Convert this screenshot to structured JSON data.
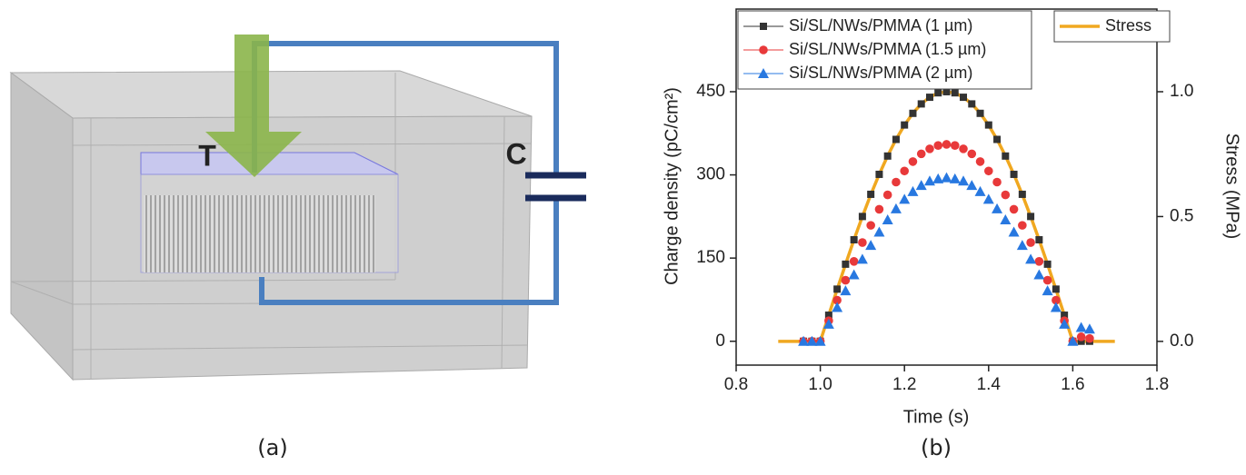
{
  "panel_a": {
    "labels": [
      "T",
      "C"
    ],
    "caption": "(a)"
  },
  "chart_data": {
    "type": "scatter",
    "caption": "(b)",
    "xlabel": "Time (s)",
    "ylabel": "Charge density (pC/cm²)",
    "y2label": "Stress (MPa)",
    "xlim": [
      0.8,
      1.8
    ],
    "xticks": [
      {
        "value": 0.8,
        "label": "0.8"
      },
      {
        "value": 1,
        "label": "1.0"
      },
      {
        "value": 1.2,
        "label": "1.2"
      },
      {
        "value": 1.4,
        "label": "1.4"
      },
      {
        "value": 1.6,
        "label": "1.6"
      },
      {
        "value": 1.8,
        "label": "1.8"
      }
    ],
    "ylim": [
      -43,
      599
    ],
    "yticks": [
      0,
      150,
      300,
      450
    ],
    "y2lim": [
      -0.095,
      1.331
    ],
    "y2ticks": [
      {
        "value": 0,
        "label": "0.0"
      },
      {
        "value": 0.5,
        "label": "0.5"
      },
      {
        "value": 1,
        "label": "1.0"
      }
    ],
    "x": [
      0.96,
      0.98,
      1.0,
      1.02,
      1.04,
      1.06,
      1.08,
      1.1,
      1.12,
      1.14,
      1.16,
      1.18,
      1.2,
      1.22,
      1.24,
      1.26,
      1.28,
      1.3,
      1.32,
      1.34,
      1.36,
      1.38,
      1.4,
      1.42,
      1.44,
      1.46,
      1.48,
      1.5,
      1.52,
      1.54,
      1.56,
      1.58,
      1.6,
      1.62,
      1.64
    ],
    "series": [
      {
        "name": "Si/SL/NWs/PMMA (1 µm)",
        "color": "#333333",
        "marker": "square",
        "values": [
          0,
          0,
          0,
          47,
          94,
          139,
          183,
          225,
          265,
          301,
          334,
          364,
          390,
          411,
          428,
          440,
          448,
          450,
          448,
          440,
          428,
          411,
          390,
          364,
          334,
          301,
          265,
          225,
          183,
          139,
          94,
          47,
          0,
          0,
          0
        ]
      },
      {
        "name": "Si/SL/NWs/PMMA (1.5 µm)",
        "color": "#e8393a",
        "marker": "circle",
        "values": [
          0,
          0,
          0,
          37,
          74,
          110,
          144,
          178,
          209,
          238,
          264,
          287,
          307,
          324,
          338,
          347,
          353,
          355,
          353,
          347,
          338,
          324,
          307,
          287,
          264,
          238,
          209,
          178,
          144,
          110,
          74,
          37,
          0,
          8,
          5
        ]
      },
      {
        "name": "Si/SL/NWs/PMMA (2 µm)",
        "color": "#2878e0",
        "marker": "triangle",
        "values": [
          0,
          0,
          0,
          31,
          61,
          91,
          120,
          148,
          173,
          197,
          219,
          239,
          256,
          270,
          281,
          289,
          293,
          295,
          293,
          289,
          281,
          270,
          256,
          239,
          219,
          197,
          173,
          148,
          120,
          91,
          61,
          31,
          0,
          25,
          22
        ]
      },
      {
        "name": "Stress",
        "color": "#f0a820",
        "marker": "line",
        "axis": "y2",
        "x": [
          0.9,
          1.0,
          1.02,
          1.04,
          1.06,
          1.08,
          1.1,
          1.12,
          1.14,
          1.16,
          1.18,
          1.2,
          1.22,
          1.24,
          1.26,
          1.28,
          1.3,
          1.32,
          1.34,
          1.36,
          1.38,
          1.4,
          1.42,
          1.44,
          1.46,
          1.48,
          1.5,
          1.52,
          1.54,
          1.56,
          1.58,
          1.6,
          1.7
        ],
        "values": [
          0,
          0,
          0.105,
          0.208,
          0.309,
          0.407,
          0.5,
          0.588,
          0.669,
          0.743,
          0.809,
          0.866,
          0.914,
          0.951,
          0.978,
          0.995,
          1,
          0.995,
          0.978,
          0.951,
          0.914,
          0.866,
          0.809,
          0.743,
          0.669,
          0.588,
          0.5,
          0.407,
          0.309,
          0.208,
          0.105,
          0,
          0
        ]
      }
    ]
  }
}
